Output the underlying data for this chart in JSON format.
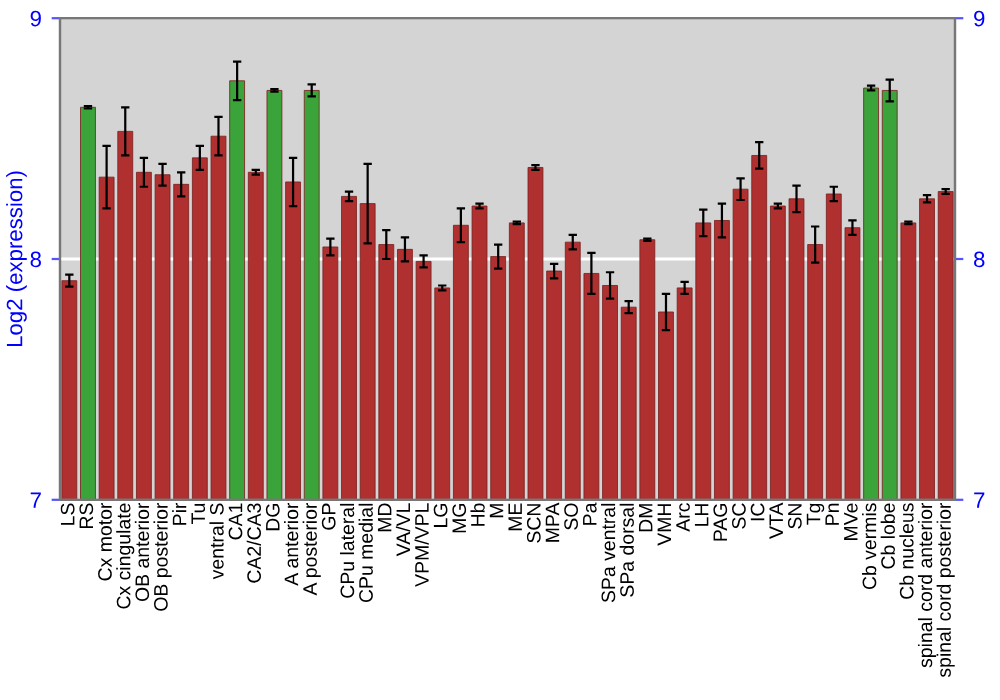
{
  "chart_data": {
    "type": "bar",
    "ylabel": "Log2 (expression)",
    "categories": [
      "LS",
      "RS",
      "Cx motor",
      "Cx cingulate",
      "OB anterior",
      "OB posterior",
      "Pir",
      "Tu",
      "ventral S",
      "CA1",
      "CA2/CA3",
      "DG",
      "A anterior",
      "A posterior",
      "GP",
      "CPu lateral",
      "CPu medial",
      "MD",
      "VA/VL",
      "VPM/VPL",
      "LG",
      "MG",
      "Hb",
      "M",
      "ME",
      "SCN",
      "MPA",
      "SO",
      "Pa",
      "SPa ventral",
      "SPa dorsal",
      "DM",
      "VMH",
      "Arc",
      "LH",
      "PAG",
      "SC",
      "IC",
      "VTA",
      "SN",
      "Tg",
      "Pn",
      "MVe",
      "Cb vermis",
      "Cb lobe",
      "Cb nucleus",
      "spinal cord anterior",
      "spinal cord posterior"
    ],
    "values": [
      7.91,
      8.63,
      8.34,
      8.53,
      8.36,
      8.35,
      8.31,
      8.42,
      8.51,
      8.74,
      8.36,
      8.7,
      8.32,
      8.7,
      8.05,
      8.26,
      8.23,
      8.06,
      8.04,
      7.99,
      7.88,
      8.14,
      8.22,
      8.01,
      8.15,
      8.38,
      7.95,
      8.07,
      7.94,
      7.89,
      7.8,
      8.08,
      7.78,
      7.88,
      8.15,
      8.16,
      8.29,
      8.43,
      8.22,
      8.25,
      8.06,
      8.27,
      8.13,
      8.71,
      8.7,
      8.15,
      8.25,
      8.28
    ],
    "errors": [
      0.025,
      0.005,
      0.13,
      0.1,
      0.06,
      0.045,
      0.05,
      0.05,
      0.08,
      0.08,
      0.01,
      0.005,
      0.1,
      0.025,
      0.035,
      0.02,
      0.165,
      0.06,
      0.05,
      0.025,
      0.01,
      0.07,
      0.01,
      0.05,
      0.005,
      0.01,
      0.03,
      0.03,
      0.085,
      0.055,
      0.025,
      0.005,
      0.075,
      0.025,
      0.055,
      0.07,
      0.045,
      0.055,
      0.01,
      0.055,
      0.075,
      0.03,
      0.03,
      0.01,
      0.045,
      0.005,
      0.015,
      0.01
    ],
    "colors": [
      "#b03030",
      "#3aa33a",
      "#b03030",
      "#b03030",
      "#b03030",
      "#b03030",
      "#b03030",
      "#b03030",
      "#b03030",
      "#3aa33a",
      "#b03030",
      "#3aa33a",
      "#b03030",
      "#3aa33a",
      "#b03030",
      "#b03030",
      "#b03030",
      "#b03030",
      "#b03030",
      "#b03030",
      "#b03030",
      "#b03030",
      "#b03030",
      "#b03030",
      "#b03030",
      "#b03030",
      "#b03030",
      "#b03030",
      "#b03030",
      "#b03030",
      "#b03030",
      "#b03030",
      "#b03030",
      "#b03030",
      "#b03030",
      "#b03030",
      "#b03030",
      "#b03030",
      "#b03030",
      "#b03030",
      "#b03030",
      "#b03030",
      "#b03030",
      "#3aa33a",
      "#3aa33a",
      "#b03030",
      "#b03030",
      "#b03030"
    ],
    "ylim": [
      7,
      9
    ],
    "yticks": [
      7,
      8,
      9
    ],
    "y2lim": [
      7,
      9
    ],
    "y2ticks": [
      7,
      8,
      9
    ],
    "grid": "y"
  }
}
